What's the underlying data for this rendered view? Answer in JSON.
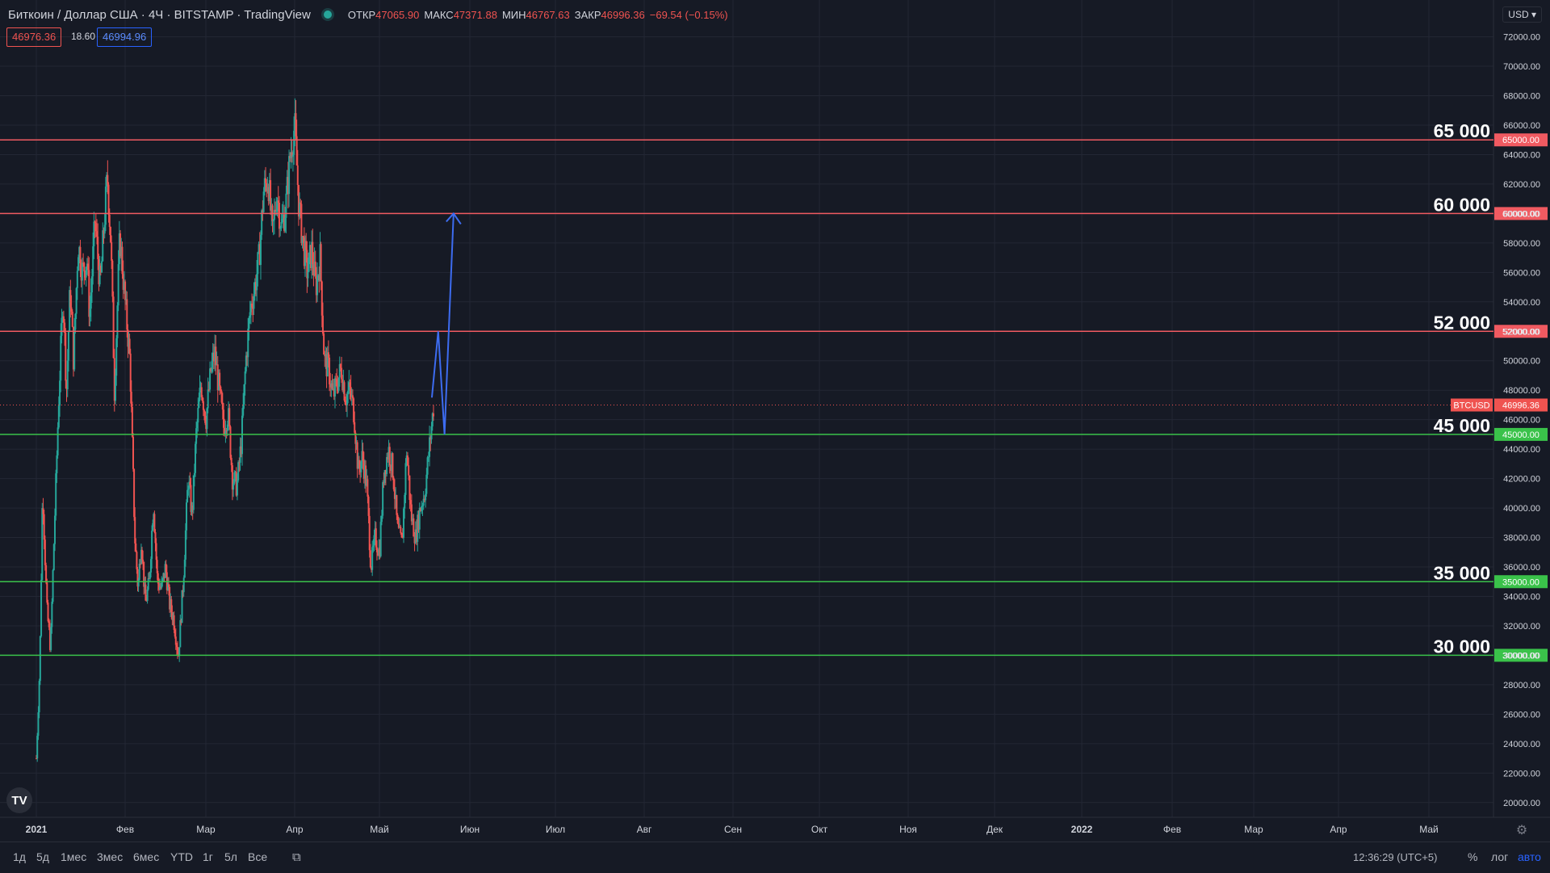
{
  "header": {
    "symbol": "Биткоин / Доллар США · 4Ч · BITSTAMP · TradingView",
    "open_label": "ОТКР",
    "open_value": "47065.90",
    "high_label": "МАКС",
    "high_value": "47371.88",
    "low_label": "МИН",
    "low_value": "46767.63",
    "close_label": "ЗАКР",
    "close_value": "46996.36",
    "change": "−69.54 (−0.15%)",
    "bid": "46976.36",
    "spread": "18.60",
    "ask": "46994.96",
    "currency": "USD",
    "logo": "TV"
  },
  "colors": {
    "background": "#161a25",
    "grid": "#232734",
    "up": "#26a69a",
    "down": "#ef5350",
    "resistance": "#f05a61",
    "support": "#3ac24a",
    "forecast": "#3d6cf0",
    "text": "#d1d4dc"
  },
  "chart_data": {
    "type": "candlestick",
    "symbol": "BTCUSD",
    "x_labels": [
      "2021",
      "Фев",
      "Мар",
      "Апр",
      "Май",
      "Июн",
      "Июл",
      "Авг",
      "Сен",
      "Окт",
      "Ноя",
      "Дек",
      "2022",
      "Фев",
      "Мар",
      "Апр",
      "Май"
    ],
    "y_ticks": [
      "20000.00",
      "22000.00",
      "24000.00",
      "26000.00",
      "28000.00",
      "30000.00",
      "32000.00",
      "34000.00",
      "36000.00",
      "38000.00",
      "40000.00",
      "42000.00",
      "44000.00",
      "46000.00",
      "48000.00",
      "50000.00",
      "52000.00",
      "54000.00",
      "56000.00",
      "58000.00",
      "60000.00",
      "62000.00",
      "64000.00",
      "66000.00",
      "68000.00",
      "70000.00",
      "72000.00"
    ],
    "ylim": [
      19000,
      74500
    ],
    "grid": true,
    "last_price": 46996.36,
    "last_price_label": "46996.36",
    "price_path": [
      [
        0,
        23000
      ],
      [
        0.04,
        29500
      ],
      [
        0.07,
        41500
      ],
      [
        0.12,
        33000
      ],
      [
        0.16,
        30500
      ],
      [
        0.2,
        38000
      ],
      [
        0.25,
        47000
      ],
      [
        0.3,
        54500
      ],
      [
        0.34,
        48000
      ],
      [
        0.38,
        55000
      ],
      [
        0.42,
        50000
      ],
      [
        0.47,
        58000
      ],
      [
        0.52,
        56000
      ],
      [
        0.57,
        57000
      ],
      [
        0.6,
        53000
      ],
      [
        0.66,
        59500
      ],
      [
        0.72,
        55000
      ],
      [
        0.76,
        59000
      ],
      [
        0.8,
        62500
      ],
      [
        0.84,
        58000
      ],
      [
        0.88,
        48000
      ],
      [
        0.94,
        58500
      ],
      [
        1.0,
        54000
      ],
      [
        1.06,
        50000
      ],
      [
        1.12,
        38000
      ],
      [
        1.16,
        34500
      ],
      [
        1.2,
        38000
      ],
      [
        1.25,
        33500
      ],
      [
        1.3,
        35000
      ],
      [
        1.35,
        40500
      ],
      [
        1.4,
        35000
      ],
      [
        1.45,
        34500
      ],
      [
        1.5,
        36000
      ],
      [
        1.55,
        33500
      ],
      [
        1.6,
        32500
      ],
      [
        1.66,
        30000
      ],
      [
        1.72,
        35000
      ],
      [
        1.78,
        42000
      ],
      [
        1.83,
        39500
      ],
      [
        1.88,
        45000
      ],
      [
        1.94,
        48500
      ],
      [
        2.0,
        46000
      ],
      [
        2.06,
        49500
      ],
      [
        2.1,
        50500
      ],
      [
        2.15,
        48000
      ],
      [
        2.2,
        45500
      ],
      [
        2.25,
        46500
      ],
      [
        2.3,
        42000
      ],
      [
        2.35,
        41500
      ],
      [
        2.4,
        44500
      ],
      [
        2.45,
        50000
      ],
      [
        2.5,
        53500
      ],
      [
        2.55,
        55000
      ],
      [
        2.6,
        57000
      ],
      [
        2.65,
        61500
      ],
      [
        2.7,
        62500
      ],
      [
        2.75,
        58500
      ],
      [
        2.8,
        61500
      ],
      [
        2.85,
        59000
      ],
      [
        2.9,
        60500
      ],
      [
        2.95,
        64000
      ],
      [
        3.0,
        66000
      ],
      [
        3.05,
        60500
      ],
      [
        3.1,
        58000
      ],
      [
        3.15,
        56000
      ],
      [
        3.2,
        57500
      ],
      [
        3.25,
        55000
      ],
      [
        3.3,
        57000
      ],
      [
        3.35,
        50000
      ],
      [
        3.4,
        49500
      ],
      [
        3.45,
        47500
      ],
      [
        3.5,
        48500
      ],
      [
        3.55,
        49500
      ],
      [
        3.6,
        47500
      ],
      [
        3.65,
        48000
      ],
      [
        3.7,
        46500
      ],
      [
        3.75,
        42500
      ],
      [
        3.8,
        43500
      ],
      [
        3.85,
        41500
      ],
      [
        3.9,
        36000
      ],
      [
        3.95,
        38000
      ],
      [
        4.0,
        37000
      ],
      [
        4.05,
        42500
      ],
      [
        4.1,
        44000
      ],
      [
        4.15,
        42500
      ],
      [
        4.2,
        38500
      ],
      [
        4.25,
        37500
      ],
      [
        4.3,
        44000
      ],
      [
        4.35,
        39500
      ],
      [
        4.4,
        38000
      ],
      [
        4.45,
        40000
      ],
      [
        4.5,
        41000
      ],
      [
        4.55,
        44000
      ],
      [
        4.6,
        46996
      ]
    ],
    "levels": [
      {
        "label": "65 000",
        "price": 65000,
        "tag": "65000.00",
        "kind": "resistance"
      },
      {
        "label": "60 000",
        "price": 60000,
        "tag": "60000.00",
        "kind": "resistance"
      },
      {
        "label": "52 000",
        "price": 52000,
        "tag": "52000.00",
        "kind": "resistance"
      },
      {
        "label": "45 000",
        "price": 45000,
        "tag": "45000.00",
        "kind": "support"
      },
      {
        "label": "35 000",
        "price": 35000,
        "tag": "35000.00",
        "kind": "support"
      },
      {
        "label": "30 000",
        "price": 30000,
        "tag": "30000.00",
        "kind": "support"
      }
    ],
    "forecast_path": [
      [
        4.58,
        47500
      ],
      [
        4.65,
        52000
      ],
      [
        4.72,
        45000
      ],
      [
        4.82,
        60000
      ]
    ]
  },
  "bottom": {
    "ranges": [
      "1д",
      "5д",
      "1мес",
      "3мес",
      "6мес",
      "YTD",
      "1г",
      "5л",
      "Все"
    ],
    "time": "12:36:29 (UTC+5)",
    "percent": "%",
    "log": "лог",
    "auto": "авто"
  }
}
